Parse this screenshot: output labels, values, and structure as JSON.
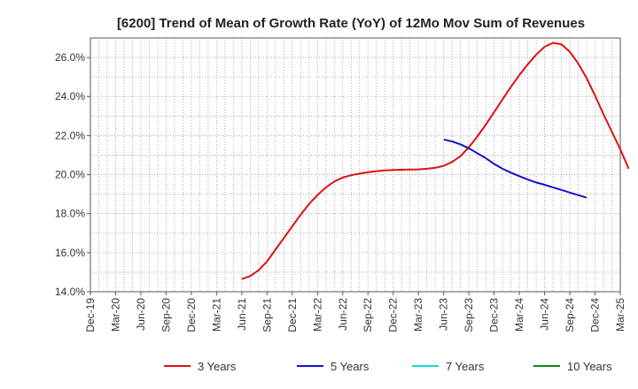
{
  "chart_data": {
    "type": "line",
    "title": "[6200]  Trend of Mean of Growth Rate (YoY) of 12Mo Mov Sum of Revenues",
    "xlabel": "",
    "ylabel": "",
    "ylim": [
      14.0,
      27.0
    ],
    "y_ticks": [
      14.0,
      16.0,
      18.0,
      20.0,
      22.0,
      24.0,
      26.0
    ],
    "y_tick_labels": [
      "14.0%",
      "16.0%",
      "18.0%",
      "20.0%",
      "22.0%",
      "24.0%",
      "26.0%"
    ],
    "x_tick_labels": [
      "Dec-19",
      "Mar-20",
      "Jun-20",
      "Sep-20",
      "Dec-20",
      "Mar-21",
      "Jun-21",
      "Sep-21",
      "Dec-21",
      "Mar-22",
      "Jun-22",
      "Sep-22",
      "Dec-22",
      "Mar-23",
      "Jun-23",
      "Sep-23",
      "Dec-23",
      "Mar-24",
      "Jun-24",
      "Sep-24",
      "Dec-24",
      "Mar-25"
    ],
    "x_start_index": 0,
    "x_end_index": 63,
    "grid": true,
    "legend_position": "bottom",
    "series": [
      {
        "name": "3 Years",
        "color": "#dd1111",
        "start_index": 18,
        "values": [
          14.65,
          14.8,
          15.1,
          15.55,
          16.15,
          16.75,
          17.35,
          17.95,
          18.5,
          18.95,
          19.35,
          19.65,
          19.85,
          19.97,
          20.05,
          20.12,
          20.18,
          20.22,
          20.24,
          20.25,
          20.26,
          20.27,
          20.3,
          20.35,
          20.45,
          20.65,
          20.95,
          21.4,
          21.95,
          22.55,
          23.2,
          23.85,
          24.5,
          25.1,
          25.65,
          26.15,
          26.55,
          26.75,
          26.68,
          26.3,
          25.7,
          24.95,
          24.05,
          23.1,
          22.2,
          21.3,
          20.3
        ]
      },
      {
        "name": "5 Years",
        "color": "#1111cc",
        "start_index": 42,
        "values": [
          21.8,
          21.7,
          21.55,
          21.35,
          21.1,
          20.85,
          20.55,
          20.3,
          20.1,
          19.92,
          19.75,
          19.6,
          19.48,
          19.35,
          19.22,
          19.08,
          18.95,
          18.82
        ]
      },
      {
        "name": "7 Years",
        "color": "#11dddd",
        "start_index": 0,
        "values": []
      },
      {
        "name": "10 Years",
        "color": "#118811",
        "start_index": 0,
        "values": []
      }
    ]
  }
}
